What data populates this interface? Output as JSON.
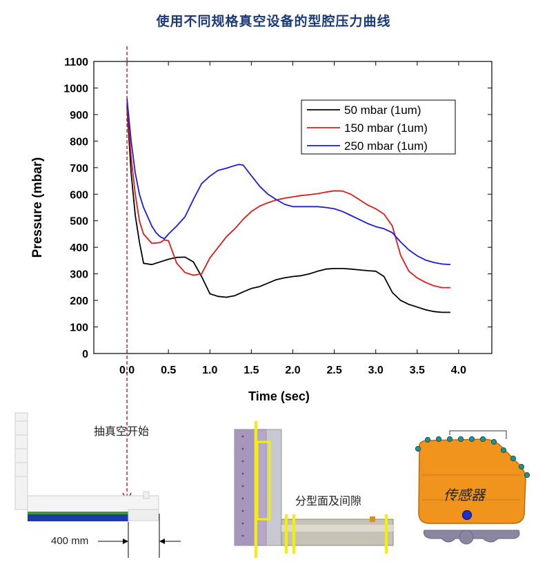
{
  "page_title": "使用不同规格真空设备的型腔压力曲线",
  "chart_data": {
    "type": "line",
    "title": "使用不同规格真空设备的型腔压力曲线",
    "xlabel": "Time (sec)",
    "ylabel": "Pressure (mbar)",
    "xlim": [
      -0.4,
      4.4
    ],
    "ylim": [
      0,
      1100
    ],
    "xticks": [
      0.0,
      0.5,
      1.0,
      1.5,
      2.0,
      2.5,
      3.0,
      3.5,
      4.0
    ],
    "xtick_labels": [
      "0.0",
      "0.5",
      "1.0",
      "1.5",
      "2.0",
      "2.5",
      "3.0",
      "3.5",
      "4.0"
    ],
    "yticks": [
      0,
      100,
      200,
      300,
      400,
      500,
      600,
      700,
      800,
      900,
      1000,
      1100
    ],
    "ytick_labels": [
      "0",
      "100",
      "200",
      "300",
      "400",
      "500",
      "600",
      "700",
      "800",
      "900",
      "1000",
      "1100"
    ],
    "legend_position": "top-right",
    "grid": false,
    "series": [
      {
        "name": "50 mbar (1um)",
        "color": "#000000",
        "x": [
          0.0,
          0.05,
          0.1,
          0.15,
          0.2,
          0.3,
          0.4,
          0.5,
          0.6,
          0.7,
          0.8,
          0.9,
          1.0,
          1.1,
          1.2,
          1.3,
          1.4,
          1.5,
          1.6,
          1.7,
          1.8,
          1.9,
          2.0,
          2.1,
          2.2,
          2.3,
          2.4,
          2.5,
          2.6,
          2.7,
          2.8,
          2.9,
          3.0,
          3.1,
          3.2,
          3.3,
          3.4,
          3.5,
          3.6,
          3.7,
          3.8,
          3.9
        ],
        "y": [
          930,
          680,
          520,
          420,
          340,
          335,
          345,
          355,
          362,
          363,
          345,
          290,
          225,
          215,
          212,
          218,
          232,
          245,
          252,
          265,
          278,
          285,
          290,
          293,
          300,
          310,
          318,
          320,
          320,
          318,
          315,
          312,
          310,
          290,
          230,
          200,
          185,
          175,
          165,
          158,
          155,
          155
        ]
      },
      {
        "name": "150 mbar (1um)",
        "color": "#e01818",
        "x": [
          0.0,
          0.05,
          0.1,
          0.15,
          0.2,
          0.3,
          0.4,
          0.45,
          0.5,
          0.6,
          0.7,
          0.8,
          0.9,
          1.0,
          1.1,
          1.2,
          1.3,
          1.4,
          1.5,
          1.6,
          1.7,
          1.8,
          1.9,
          2.0,
          2.1,
          2.2,
          2.3,
          2.4,
          2.5,
          2.6,
          2.7,
          2.8,
          2.9,
          3.0,
          3.1,
          3.2,
          3.3,
          3.4,
          3.5,
          3.6,
          3.7,
          3.8,
          3.9
        ],
        "y": [
          940,
          740,
          600,
          500,
          450,
          415,
          418,
          428,
          425,
          340,
          305,
          295,
          300,
          360,
          400,
          440,
          470,
          505,
          535,
          555,
          568,
          578,
          585,
          590,
          595,
          598,
          602,
          608,
          613,
          612,
          600,
          580,
          560,
          545,
          525,
          480,
          370,
          310,
          285,
          268,
          255,
          248,
          248
        ]
      },
      {
        "name": "250 mbar (1um)",
        "color": "#1a1ae0",
        "x": [
          0.0,
          0.05,
          0.1,
          0.15,
          0.2,
          0.3,
          0.35,
          0.4,
          0.45,
          0.5,
          0.6,
          0.7,
          0.8,
          0.9,
          1.0,
          1.1,
          1.2,
          1.3,
          1.35,
          1.4,
          1.5,
          1.6,
          1.7,
          1.8,
          1.9,
          2.0,
          2.1,
          2.2,
          2.3,
          2.4,
          2.5,
          2.6,
          2.7,
          2.8,
          2.9,
          3.0,
          3.1,
          3.2,
          3.3,
          3.4,
          3.5,
          3.6,
          3.7,
          3.8,
          3.9
        ],
        "y": [
          960,
          800,
          680,
          600,
          550,
          480,
          455,
          440,
          432,
          450,
          480,
          515,
          580,
          640,
          668,
          690,
          698,
          708,
          712,
          710,
          670,
          630,
          600,
          580,
          562,
          553,
          553,
          553,
          553,
          550,
          545,
          535,
          520,
          505,
          490,
          478,
          470,
          455,
          420,
          390,
          368,
          352,
          343,
          337,
          335
        ]
      }
    ]
  },
  "annotations": {
    "vacuum_start": "抽真空开始",
    "parting_gap": "分型面及间隙",
    "distance": "400 mm",
    "sensor": "传感器"
  }
}
